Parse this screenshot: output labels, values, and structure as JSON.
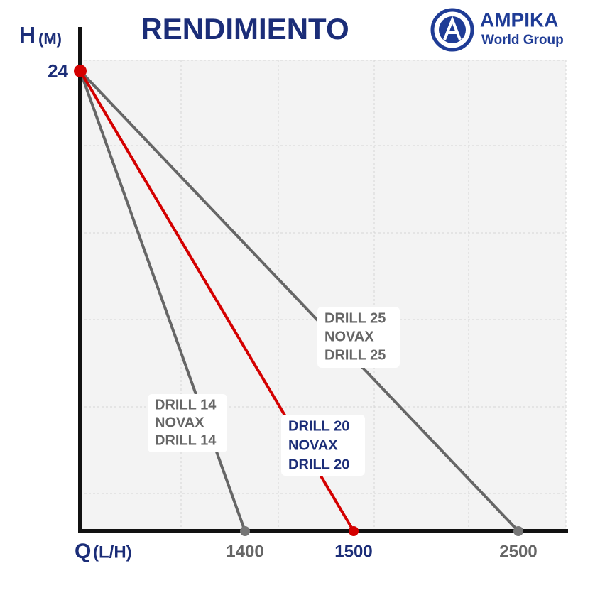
{
  "header": {
    "title": "RENDIMIENTO"
  },
  "brand": {
    "name": "AMPIKA",
    "tagline": "World Group"
  },
  "axes": {
    "y_label": "H",
    "y_unit": "(M)",
    "x_label": "Q",
    "x_unit": "(L/H)",
    "y_max": 24
  },
  "pumps": [
    {
      "label": [
        "DRILL 14",
        "NOVAX",
        "DRILL 14"
      ],
      "flow": 1400
    },
    {
      "label": [
        "DRILL 20",
        "NOVAX",
        "DRILL 20"
      ],
      "flow": 1500
    },
    {
      "label": [
        "DRILL 25",
        "NOVAX",
        "DRILL 25"
      ],
      "flow": 2500
    }
  ]
}
